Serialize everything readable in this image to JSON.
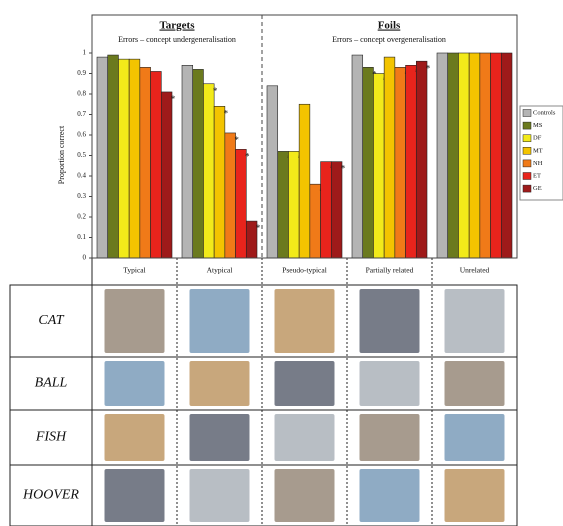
{
  "chart_data": {
    "type": "bar",
    "titles": [
      {
        "title": "Targets",
        "subtitle": "Errors – concept undergeneralisation"
      },
      {
        "title": "Foils",
        "subtitle": "Errors – concept overgeneralisation"
      }
    ],
    "y_label": "Proportion correct",
    "categories": [
      "Typical",
      "Atypical",
      "Pseudo-typical",
      "Partially related",
      "Unrelated"
    ],
    "series": [
      {
        "name": "Controls",
        "color": "#b4b4b4",
        "values": [
          0.98,
          0.94,
          0.84,
          0.99,
          1
        ]
      },
      {
        "name": "MS",
        "color": "#6b7a1e",
        "values": [
          0.99,
          0.92,
          0.52,
          0.93,
          1
        ]
      },
      {
        "name": "DF",
        "color": "#f2ea1a",
        "values": [
          0.97,
          0.85,
          0.52,
          0.9,
          1
        ]
      },
      {
        "name": "MT",
        "color": "#f3c400",
        "values": [
          0.97,
          0.74,
          0.75,
          0.98,
          1
        ]
      },
      {
        "name": "NH",
        "color": "#f07a18",
        "values": [
          0.93,
          0.61,
          0.36,
          0.93,
          1
        ]
      },
      {
        "name": "ET",
        "color": "#e8241c",
        "values": [
          0.91,
          0.53,
          0.47,
          0.94,
          1
        ]
      },
      {
        "name": "GE",
        "color": "#9e1a1a",
        "values": [
          0.81,
          0.18,
          0.47,
          0.96,
          1
        ]
      }
    ],
    "significance_marker": "*",
    "significant": [
      [
        false,
        false,
        false,
        false,
        false
      ],
      [
        false,
        false,
        true,
        true,
        false
      ],
      [
        false,
        true,
        true,
        true,
        false
      ],
      [
        false,
        true,
        false,
        false,
        false
      ],
      [
        false,
        true,
        true,
        true,
        false
      ],
      [
        false,
        true,
        true,
        true,
        false
      ],
      [
        true,
        true,
        true,
        true,
        false
      ]
    ],
    "ylim": [
      0,
      1
    ],
    "yticks": [
      0,
      0.1,
      0.2,
      0.3,
      0.4,
      0.5,
      0.6,
      0.7,
      0.8,
      0.9,
      1
    ]
  },
  "stimuli": {
    "rows": [
      "CAT",
      "BALL",
      "FISH",
      "HOOVER"
    ]
  }
}
